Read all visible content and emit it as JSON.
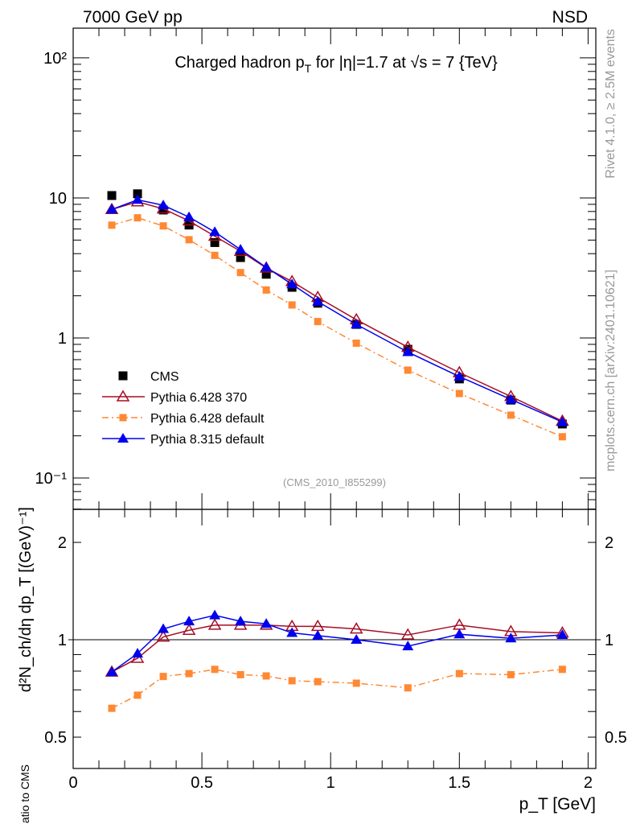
{
  "header": {
    "left": "7000 GeV pp",
    "right": "NSD"
  },
  "side_text": {
    "top": "Rivet 4.1.0, ≥ 2.5M events",
    "bottom": "mcplots.cern.ch [arXiv:2401.10621]"
  },
  "watermark": "(CMS_2010_I855299)",
  "chart_data": [
    {
      "type": "line",
      "title": "Charged hadron p_T for |η|=1.7 at √s = 7 {TeV}",
      "title_parts": {
        "a": "Charged hadron p",
        "sub": "T",
        "b": " for |η|=1.7 at √s = 7 {TeV}"
      },
      "ylabel": "d²N_ch/dη dp_T [(GeV)⁻¹]",
      "yscale": "log",
      "ylim": [
        0.0597,
        163
      ],
      "xlim": [
        0,
        2.03
      ],
      "yticks": [
        {
          "v": 100,
          "label": "10²"
        },
        {
          "v": 10,
          "label": "10"
        },
        {
          "v": 1,
          "label": "1"
        },
        {
          "v": 0.1,
          "label": "10⁻¹"
        }
      ],
      "legend_position": "lower-left",
      "x": [
        0.15,
        0.25,
        0.35,
        0.45,
        0.55,
        0.65,
        0.75,
        0.85,
        0.95,
        1.1,
        1.3,
        1.5,
        1.7,
        1.9
      ],
      "series": [
        {
          "name": "CMS",
          "color": "#000000",
          "marker": "square",
          "line": "none",
          "values": [
            10.4,
            10.7,
            8.2,
            6.4,
            4.8,
            3.75,
            2.85,
            2.3,
            1.77,
            1.25,
            0.83,
            0.51,
            0.36,
            0.243
          ]
        },
        {
          "name": "Pythia 6.428 370",
          "color": "#a50f24",
          "marker": "open-triangle",
          "line": "solid",
          "values": [
            8.27,
            9.38,
            8.36,
            6.85,
            5.33,
            4.16,
            3.16,
            2.53,
            1.95,
            1.35,
            0.859,
            0.566,
            0.382,
            0.255
          ]
        },
        {
          "name": "Pythia 6.428 default",
          "color": "#ff8833",
          "marker": "square",
          "line": "dashdot",
          "values": [
            6.39,
            7.21,
            6.31,
            5.03,
            3.89,
            2.93,
            2.2,
            1.72,
            1.31,
            0.918,
            0.589,
            0.401,
            0.281,
            0.197
          ]
        },
        {
          "name": "Pythia 8.315 default",
          "color": "#0000ee",
          "marker": "triangle",
          "line": "solid",
          "values": [
            8.27,
            9.7,
            8.86,
            7.3,
            5.71,
            4.28,
            3.19,
            2.42,
            1.82,
            1.25,
            0.793,
            0.53,
            0.364,
            0.251
          ]
        }
      ]
    },
    {
      "type": "line",
      "ylabel": "Ratio to CMS",
      "xlabel": "p_T [GeV]",
      "xlabel_parts": {
        "a": "p",
        "sub": "T",
        "b": " [GeV]"
      },
      "yscale": "log",
      "ylim": [
        0.4,
        2.53
      ],
      "xlim": [
        0,
        2.03
      ],
      "yticks": [
        {
          "v": 2,
          "label": "2"
        },
        {
          "v": 1,
          "label": "1"
        },
        {
          "v": 0.5,
          "label": "0.5"
        }
      ],
      "xticks": [
        {
          "v": 0,
          "label": "0"
        },
        {
          "v": 0.5,
          "label": "0.5"
        },
        {
          "v": 1,
          "label": "1"
        },
        {
          "v": 1.5,
          "label": "1.5"
        },
        {
          "v": 2,
          "label": "2"
        }
      ],
      "x": [
        0.15,
        0.25,
        0.35,
        0.45,
        0.55,
        0.65,
        0.75,
        0.85,
        0.95,
        1.1,
        1.3,
        1.5,
        1.7,
        1.9
      ],
      "series": [
        {
          "name": "Pythia 6.428 370",
          "color": "#a50f24",
          "marker": "open-triangle",
          "line": "solid",
          "values": [
            0.795,
            0.877,
            1.02,
            1.07,
            1.11,
            1.11,
            1.11,
            1.1,
            1.1,
            1.08,
            1.035,
            1.11,
            1.06,
            1.05
          ]
        },
        {
          "name": "Pythia 6.428 default",
          "color": "#ff8833",
          "marker": "square",
          "line": "dashdot",
          "values": [
            0.614,
            0.674,
            0.77,
            0.786,
            0.81,
            0.78,
            0.773,
            0.747,
            0.742,
            0.734,
            0.71,
            0.786,
            0.78,
            0.81
          ]
        },
        {
          "name": "Pythia 8.315 default",
          "color": "#0000ee",
          "marker": "triangle",
          "line": "solid",
          "values": [
            0.795,
            0.907,
            1.08,
            1.14,
            1.19,
            1.14,
            1.12,
            1.05,
            1.03,
            1.0,
            0.955,
            1.04,
            1.01,
            1.035
          ]
        }
      ]
    }
  ]
}
